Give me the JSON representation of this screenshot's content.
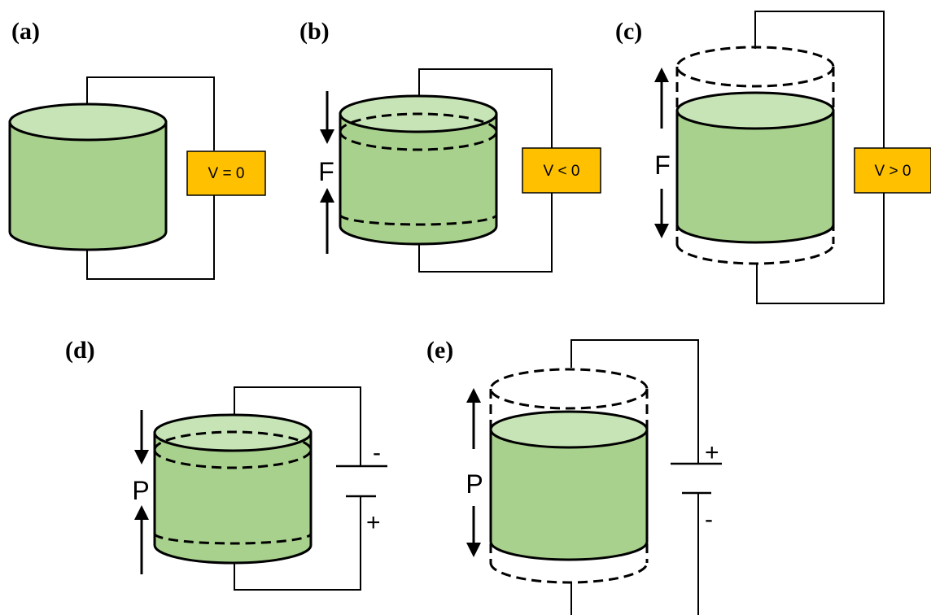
{
  "panels": {
    "a": {
      "label": "(a)",
      "voltage": "V = 0"
    },
    "b": {
      "label": "(b)",
      "voltage": "V < 0",
      "force": "F"
    },
    "c": {
      "label": "(c)",
      "voltage": "V > 0",
      "force": "F"
    },
    "d": {
      "label": "(d)",
      "polarization": "P",
      "top_terminal": "-",
      "bottom_terminal": "+"
    },
    "e": {
      "label": "(e)",
      "polarization": "P",
      "top_terminal": "+",
      "bottom_terminal": "-"
    }
  },
  "colors": {
    "cylinder_body": "#a9d18e",
    "cylinder_top": "#c7e4b6",
    "voltmeter": "#ffc000",
    "outline": "#000000"
  }
}
